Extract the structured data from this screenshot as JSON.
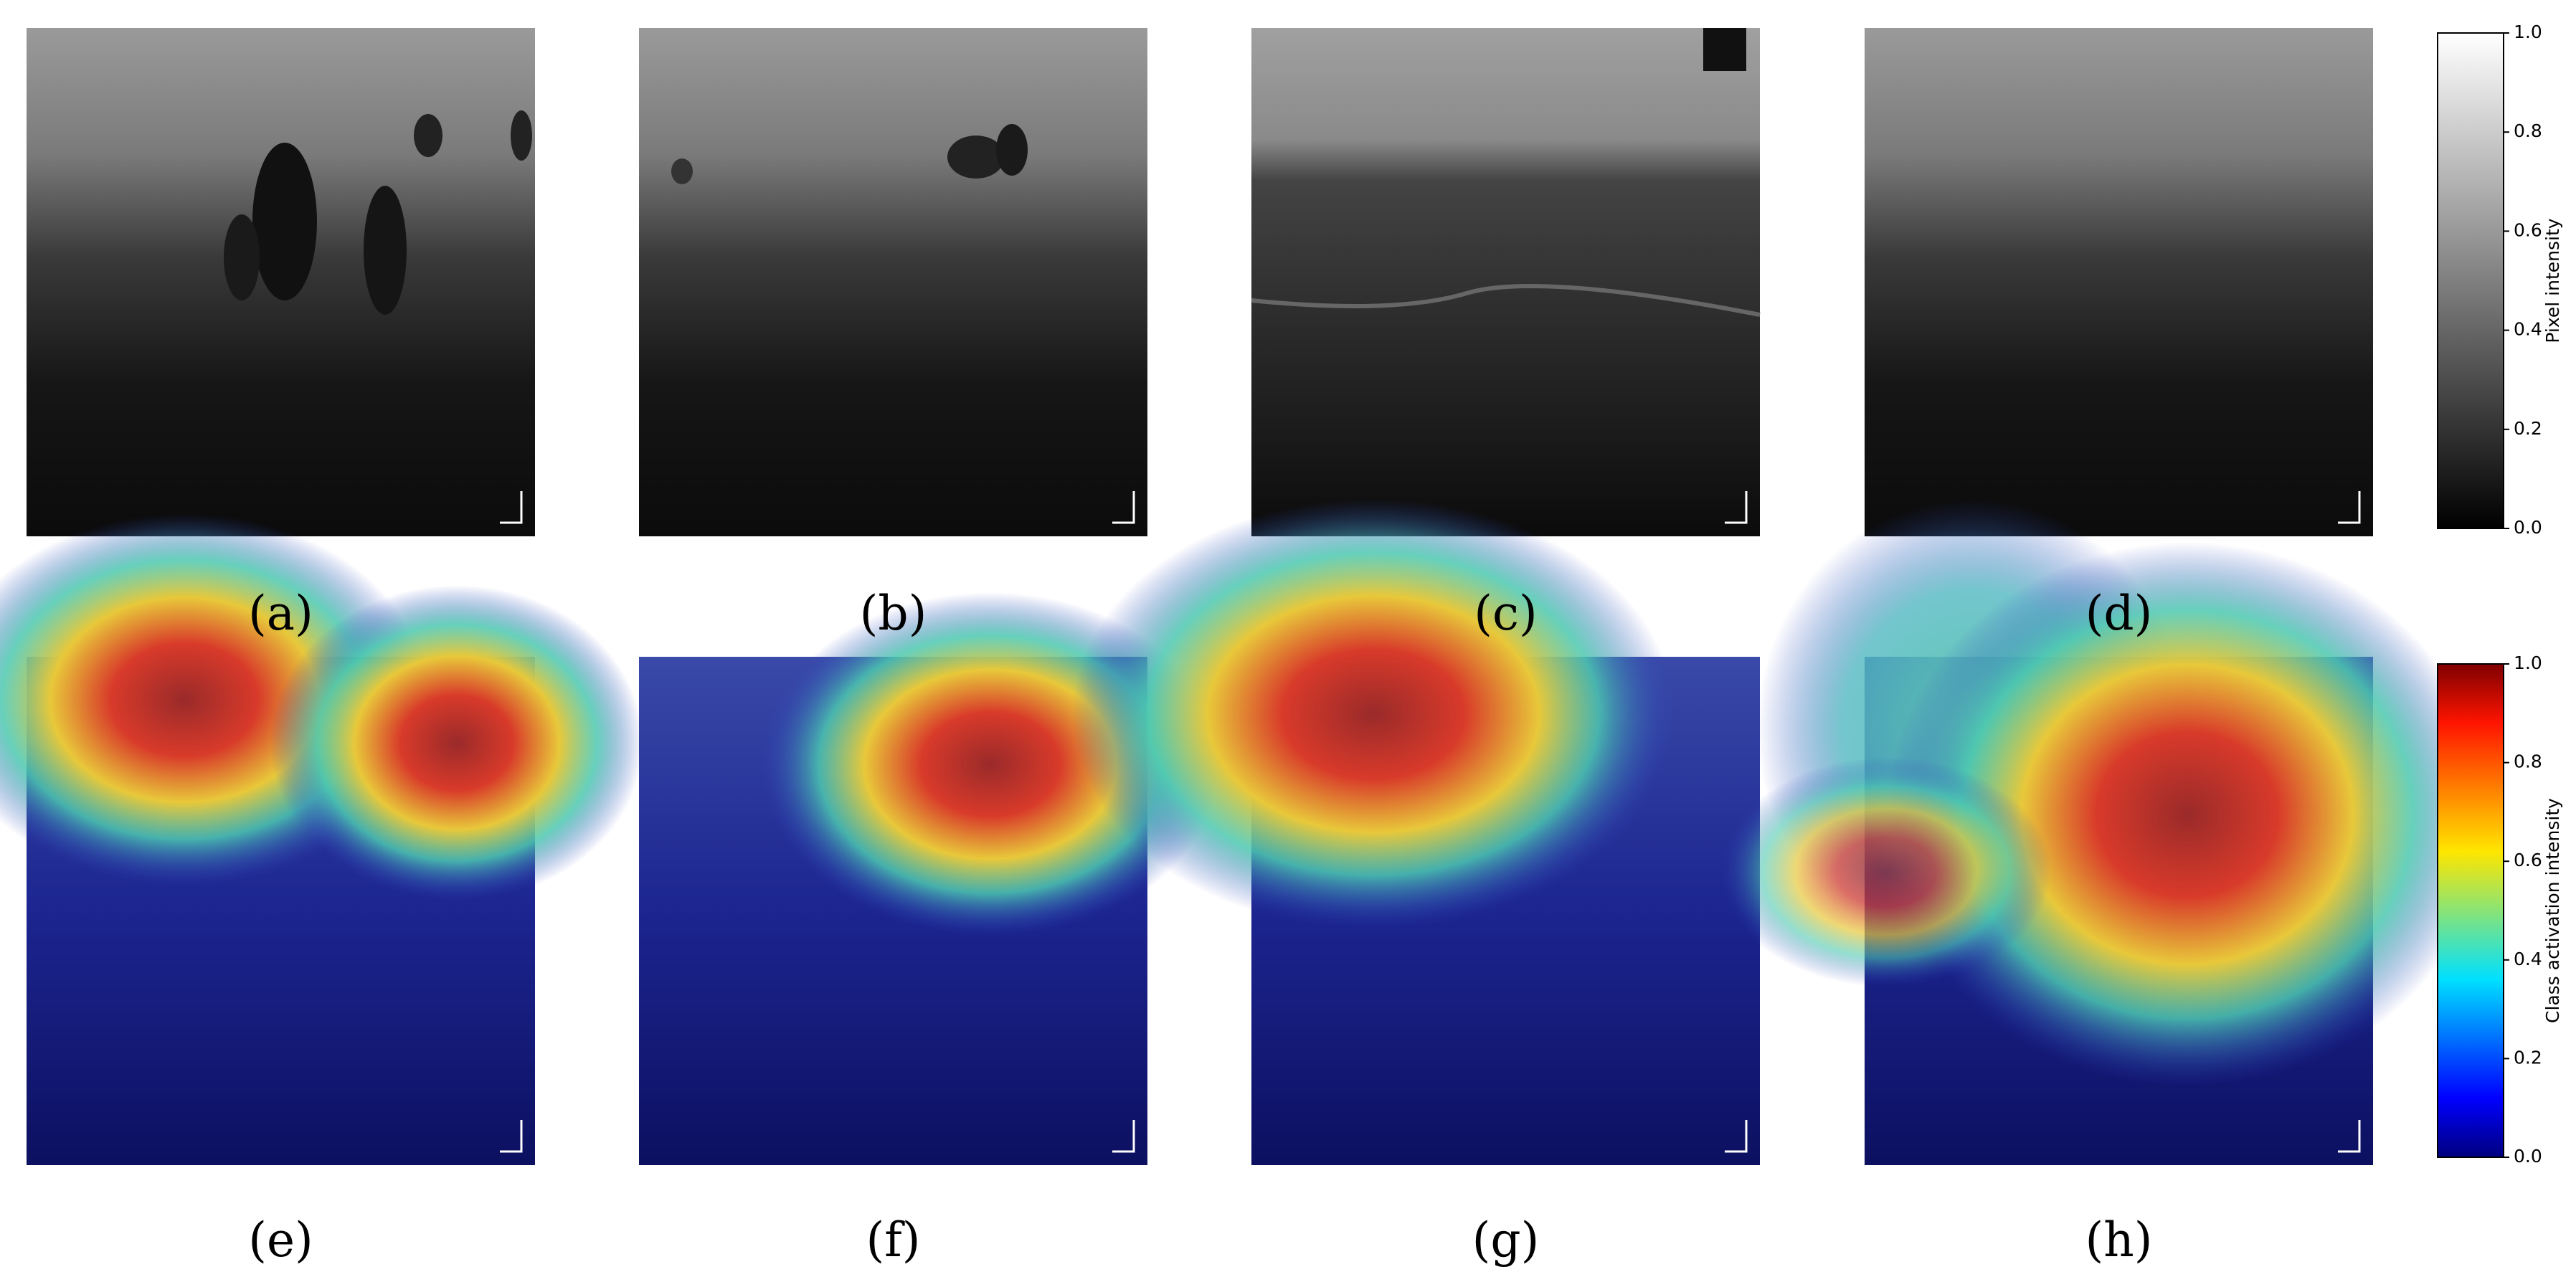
{
  "panels": [
    "(a)",
    "(b)",
    "(c)",
    "(d)",
    "(e)",
    "(f)",
    "(g)",
    "(h)"
  ],
  "colorbars": [
    {
      "label": "Pixel intensity",
      "range": [
        0,
        1
      ],
      "ticks": [
        {
          "value": 0,
          "label": "0.0"
        },
        {
          "value": 0.2,
          "label": "0.2"
        },
        {
          "value": 0.4,
          "label": "0.4"
        },
        {
          "value": 0.6,
          "label": "0.6"
        },
        {
          "value": 0.8,
          "label": "0.8"
        },
        {
          "value": 1,
          "label": "1.0"
        }
      ]
    },
    {
      "label": "Class activation intensity",
      "range": [
        0,
        1
      ],
      "ticks": [
        {
          "value": 0,
          "label": "0.0"
        },
        {
          "value": 0.2,
          "label": "0.2"
        },
        {
          "value": 0.4,
          "label": "0.4"
        },
        {
          "value": 0.6,
          "label": "0.6"
        },
        {
          "value": 0.8,
          "label": "0.8"
        },
        {
          "value": 1,
          "label": "1.0"
        }
      ]
    }
  ]
}
